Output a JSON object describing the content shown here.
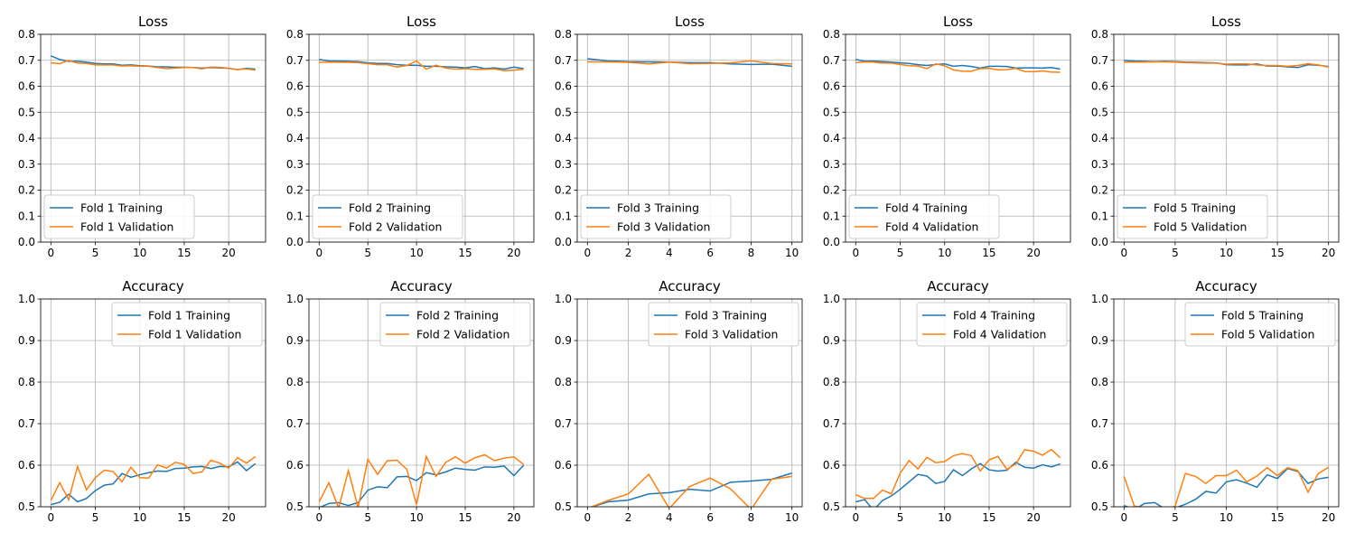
{
  "colors": {
    "training": "#1f77b4",
    "validation": "#ff7f0e",
    "grid": "#b0b0b0"
  },
  "chart_data": [
    {
      "type": "line",
      "title": "Loss",
      "xlim": [
        -1.15,
        24.15
      ],
      "ylim": [
        0.0,
        0.8
      ],
      "xticks": [
        0,
        5,
        10,
        15,
        20
      ],
      "yticks": [
        0.0,
        0.1,
        0.2,
        0.3,
        0.4,
        0.5,
        0.6,
        0.7,
        0.8
      ],
      "grid": true,
      "legend_loc": "lower-left",
      "x": [
        0,
        1,
        2,
        3,
        4,
        5,
        6,
        7,
        8,
        9,
        10,
        11,
        12,
        13,
        14,
        15,
        16,
        17,
        18,
        19,
        20,
        21,
        22,
        23
      ],
      "series": [
        {
          "name": "Fold 1 Training",
          "values": [
            0.717,
            0.703,
            0.696,
            0.696,
            0.693,
            0.688,
            0.686,
            0.686,
            0.681,
            0.682,
            0.679,
            0.678,
            0.675,
            0.675,
            0.673,
            0.673,
            0.672,
            0.67,
            0.672,
            0.671,
            0.669,
            0.664,
            0.669,
            0.666
          ]
        },
        {
          "name": "Fold 1 Validation",
          "values": [
            0.69,
            0.687,
            0.7,
            0.689,
            0.688,
            0.682,
            0.682,
            0.682,
            0.678,
            0.679,
            0.677,
            0.677,
            0.672,
            0.668,
            0.67,
            0.672,
            0.672,
            0.667,
            0.674,
            0.673,
            0.669,
            0.665,
            0.667,
            0.662
          ]
        }
      ]
    },
    {
      "type": "line",
      "title": "Loss",
      "xlim": [
        -1.05,
        22.05
      ],
      "ylim": [
        0.0,
        0.8
      ],
      "xticks": [
        0,
        5,
        10,
        15,
        20
      ],
      "yticks": [
        0.0,
        0.1,
        0.2,
        0.3,
        0.4,
        0.5,
        0.6,
        0.7,
        0.8
      ],
      "grid": true,
      "legend_loc": "lower-left",
      "x": [
        0,
        1,
        2,
        3,
        4,
        5,
        6,
        7,
        8,
        9,
        10,
        11,
        12,
        13,
        14,
        15,
        16,
        17,
        18,
        19,
        20,
        21
      ],
      "series": [
        {
          "name": "Fold 2 Training",
          "values": [
            0.703,
            0.698,
            0.697,
            0.696,
            0.695,
            0.69,
            0.688,
            0.688,
            0.683,
            0.681,
            0.681,
            0.677,
            0.677,
            0.675,
            0.674,
            0.671,
            0.676,
            0.668,
            0.671,
            0.666,
            0.674,
            0.668
          ]
        },
        {
          "name": "Fold 2 Validation",
          "values": [
            0.692,
            0.693,
            0.692,
            0.692,
            0.691,
            0.687,
            0.683,
            0.683,
            0.674,
            0.68,
            0.697,
            0.666,
            0.681,
            0.67,
            0.666,
            0.668,
            0.665,
            0.665,
            0.667,
            0.66,
            0.662,
            0.665
          ]
        }
      ]
    },
    {
      "type": "line",
      "title": "Loss",
      "xlim": [
        -0.5,
        10.5
      ],
      "ylim": [
        0.0,
        0.8
      ],
      "xticks": [
        0,
        2,
        4,
        6,
        8,
        10
      ],
      "yticks": [
        0.0,
        0.1,
        0.2,
        0.3,
        0.4,
        0.5,
        0.6,
        0.7,
        0.8
      ],
      "grid": true,
      "legend_loc": "lower-left",
      "x": [
        0,
        1,
        2,
        3,
        4,
        5,
        6,
        7,
        8,
        9,
        10
      ],
      "series": [
        {
          "name": "Fold 3 Training",
          "values": [
            0.706,
            0.698,
            0.695,
            0.694,
            0.693,
            0.691,
            0.691,
            0.686,
            0.684,
            0.685,
            0.677
          ]
        },
        {
          "name": "Fold 3 Validation",
          "values": [
            0.694,
            0.694,
            0.692,
            0.686,
            0.693,
            0.687,
            0.688,
            0.69,
            0.698,
            0.688,
            0.686
          ]
        }
      ]
    },
    {
      "type": "line",
      "title": "Loss",
      "xlim": [
        -1.15,
        24.15
      ],
      "ylim": [
        0.0,
        0.8
      ],
      "xticks": [
        0,
        5,
        10,
        15,
        20
      ],
      "yticks": [
        0.0,
        0.1,
        0.2,
        0.3,
        0.4,
        0.5,
        0.6,
        0.7,
        0.8
      ],
      "grid": true,
      "legend_loc": "lower-left",
      "x": [
        0,
        1,
        2,
        3,
        4,
        5,
        6,
        7,
        8,
        9,
        10,
        11,
        12,
        13,
        14,
        15,
        16,
        17,
        18,
        19,
        20,
        21,
        22,
        23
      ],
      "series": [
        {
          "name": "Fold 4 Training",
          "values": [
            0.703,
            0.697,
            0.697,
            0.695,
            0.693,
            0.69,
            0.688,
            0.683,
            0.68,
            0.684,
            0.686,
            0.677,
            0.68,
            0.676,
            0.67,
            0.677,
            0.677,
            0.676,
            0.67,
            0.671,
            0.671,
            0.67,
            0.672,
            0.666
          ]
        },
        {
          "name": "Fold 4 Validation",
          "values": [
            0.691,
            0.694,
            0.693,
            0.689,
            0.689,
            0.684,
            0.679,
            0.678,
            0.668,
            0.686,
            0.679,
            0.663,
            0.658,
            0.658,
            0.668,
            0.669,
            0.663,
            0.664,
            0.669,
            0.657,
            0.656,
            0.659,
            0.655,
            0.654
          ]
        }
      ]
    },
    {
      "type": "line",
      "title": "Loss",
      "xlim": [
        -1.0,
        21.0
      ],
      "ylim": [
        0.0,
        0.8
      ],
      "xticks": [
        0,
        5,
        10,
        15,
        20
      ],
      "yticks": [
        0.0,
        0.1,
        0.2,
        0.3,
        0.4,
        0.5,
        0.6,
        0.7,
        0.8
      ],
      "grid": true,
      "legend_loc": "lower-left",
      "x": [
        0,
        1,
        2,
        3,
        4,
        5,
        6,
        7,
        8,
        9,
        10,
        11,
        12,
        13,
        14,
        15,
        16,
        17,
        18,
        19,
        20
      ],
      "series": [
        {
          "name": "Fold 5 Training",
          "values": [
            0.7,
            0.697,
            0.696,
            0.695,
            0.696,
            0.695,
            0.693,
            0.692,
            0.691,
            0.69,
            0.683,
            0.682,
            0.682,
            0.686,
            0.678,
            0.678,
            0.675,
            0.672,
            0.683,
            0.681,
            0.676
          ]
        },
        {
          "name": "Fold 5 Validation",
          "values": [
            0.693,
            0.693,
            0.693,
            0.694,
            0.694,
            0.693,
            0.691,
            0.69,
            0.689,
            0.689,
            0.685,
            0.686,
            0.686,
            0.682,
            0.68,
            0.68,
            0.677,
            0.68,
            0.687,
            0.682,
            0.674
          ]
        }
      ]
    },
    {
      "type": "line",
      "title": "Accuracy",
      "xlim": [
        -1.15,
        24.15
      ],
      "ylim": [
        0.5,
        1.0
      ],
      "xticks": [
        0,
        5,
        10,
        15,
        20
      ],
      "yticks": [
        0.5,
        0.6,
        0.7,
        0.8,
        0.9,
        1.0
      ],
      "grid": true,
      "legend_loc": "upper-right",
      "x": [
        0,
        1,
        2,
        3,
        4,
        5,
        6,
        7,
        8,
        9,
        10,
        11,
        12,
        13,
        14,
        15,
        16,
        17,
        18,
        19,
        20,
        21,
        22,
        23
      ],
      "series": [
        {
          "name": "Fold 1 Training",
          "values": [
            0.505,
            0.511,
            0.53,
            0.512,
            0.52,
            0.539,
            0.552,
            0.555,
            0.58,
            0.571,
            0.577,
            0.582,
            0.586,
            0.585,
            0.592,
            0.593,
            0.596,
            0.597,
            0.592,
            0.597,
            0.596,
            0.608,
            0.587,
            0.604
          ]
        },
        {
          "name": "Fold 1 Validation",
          "values": [
            0.515,
            0.558,
            0.517,
            0.597,
            0.541,
            0.57,
            0.588,
            0.585,
            0.56,
            0.595,
            0.57,
            0.569,
            0.601,
            0.593,
            0.607,
            0.602,
            0.58,
            0.584,
            0.612,
            0.605,
            0.593,
            0.618,
            0.605,
            0.621
          ]
        }
      ]
    },
    {
      "type": "line",
      "title": "Accuracy",
      "xlim": [
        -1.05,
        22.05
      ],
      "ylim": [
        0.5,
        1.0
      ],
      "xticks": [
        0,
        5,
        10,
        15,
        20
      ],
      "yticks": [
        0.5,
        0.6,
        0.7,
        0.8,
        0.9,
        1.0
      ],
      "grid": true,
      "legend_loc": "upper-right",
      "x": [
        0,
        1,
        2,
        3,
        4,
        5,
        6,
        7,
        8,
        9,
        10,
        11,
        12,
        13,
        14,
        15,
        16,
        17,
        18,
        19,
        20,
        21
      ],
      "series": [
        {
          "name": "Fold 2 Training",
          "values": [
            0.498,
            0.508,
            0.51,
            0.503,
            0.51,
            0.54,
            0.548,
            0.546,
            0.572,
            0.573,
            0.563,
            0.582,
            0.577,
            0.584,
            0.593,
            0.59,
            0.588,
            0.596,
            0.595,
            0.598,
            0.575,
            0.6
          ]
        },
        {
          "name": "Fold 2 Validation",
          "values": [
            0.512,
            0.558,
            0.497,
            0.587,
            0.498,
            0.614,
            0.578,
            0.611,
            0.612,
            0.59,
            0.505,
            0.621,
            0.573,
            0.607,
            0.62,
            0.605,
            0.618,
            0.625,
            0.611,
            0.617,
            0.62,
            0.602
          ]
        }
      ]
    },
    {
      "type": "line",
      "title": "Accuracy",
      "xlim": [
        -0.5,
        10.5
      ],
      "ylim": [
        0.5,
        1.0
      ],
      "xticks": [
        0,
        2,
        4,
        6,
        8,
        10
      ],
      "yticks": [
        0.5,
        0.6,
        0.7,
        0.8,
        0.9,
        1.0
      ],
      "grid": true,
      "legend_loc": "upper-right",
      "x": [
        0,
        1,
        2,
        3,
        4,
        5,
        6,
        7,
        8,
        9,
        10
      ],
      "series": [
        {
          "name": "Fold 3 Training",
          "values": [
            0.496,
            0.512,
            0.516,
            0.531,
            0.534,
            0.542,
            0.538,
            0.559,
            0.562,
            0.566,
            0.581
          ]
        },
        {
          "name": "Fold 3 Validation",
          "values": [
            0.496,
            0.515,
            0.531,
            0.578,
            0.496,
            0.549,
            0.569,
            0.543,
            0.494,
            0.566,
            0.573
          ]
        }
      ]
    },
    {
      "type": "line",
      "title": "Accuracy",
      "xlim": [
        -1.15,
        24.15
      ],
      "ylim": [
        0.5,
        1.0
      ],
      "xticks": [
        0,
        5,
        10,
        15,
        20
      ],
      "yticks": [
        0.5,
        0.6,
        0.7,
        0.8,
        0.9,
        1.0
      ],
      "grid": true,
      "legend_loc": "upper-right",
      "x": [
        0,
        1,
        2,
        3,
        4,
        5,
        6,
        7,
        8,
        9,
        10,
        11,
        12,
        13,
        14,
        15,
        16,
        17,
        18,
        19,
        20,
        21,
        22,
        23
      ],
      "series": [
        {
          "name": "Fold 4 Training",
          "values": [
            0.512,
            0.517,
            0.492,
            0.515,
            0.526,
            0.542,
            0.56,
            0.578,
            0.574,
            0.556,
            0.561,
            0.589,
            0.575,
            0.591,
            0.604,
            0.589,
            0.586,
            0.588,
            0.607,
            0.595,
            0.593,
            0.601,
            0.596,
            0.603
          ]
        },
        {
          "name": "Fold 4 Validation",
          "values": [
            0.529,
            0.52,
            0.52,
            0.54,
            0.531,
            0.581,
            0.611,
            0.591,
            0.619,
            0.606,
            0.609,
            0.623,
            0.628,
            0.623,
            0.586,
            0.613,
            0.621,
            0.59,
            0.603,
            0.637,
            0.634,
            0.624,
            0.638,
            0.618
          ]
        }
      ]
    },
    {
      "type": "line",
      "title": "Accuracy",
      "xlim": [
        -1.0,
        21.0
      ],
      "ylim": [
        0.5,
        1.0
      ],
      "xticks": [
        0,
        5,
        10,
        15,
        20
      ],
      "yticks": [
        0.5,
        0.6,
        0.7,
        0.8,
        0.9,
        1.0
      ],
      "grid": true,
      "legend_loc": "upper-right",
      "x": [
        0,
        1,
        2,
        3,
        4,
        5,
        6,
        7,
        8,
        9,
        10,
        11,
        12,
        13,
        14,
        15,
        16,
        17,
        18,
        19,
        20
      ],
      "series": [
        {
          "name": "Fold 5 Training",
          "values": [
            0.503,
            0.493,
            0.508,
            0.51,
            0.495,
            0.497,
            0.506,
            0.518,
            0.537,
            0.533,
            0.56,
            0.565,
            0.557,
            0.547,
            0.577,
            0.568,
            0.592,
            0.585,
            0.556,
            0.567,
            0.571
          ]
        },
        {
          "name": "Fold 5 Validation",
          "values": [
            0.573,
            0.502,
            0.497,
            0.497,
            0.491,
            0.502,
            0.58,
            0.573,
            0.556,
            0.575,
            0.575,
            0.588,
            0.56,
            0.574,
            0.594,
            0.575,
            0.594,
            0.587,
            0.535,
            0.58,
            0.595
          ]
        }
      ]
    }
  ]
}
